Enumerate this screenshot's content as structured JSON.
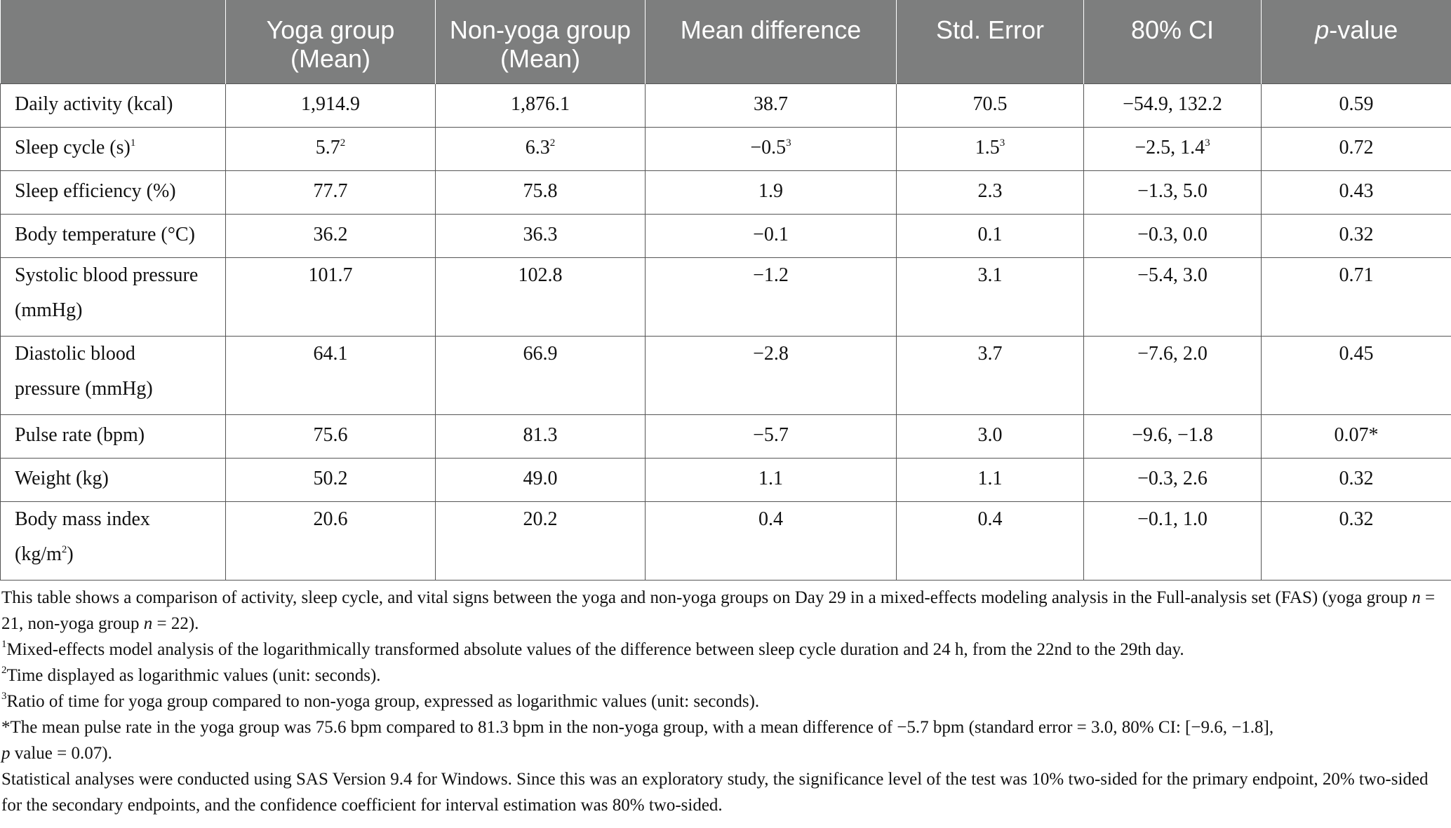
{
  "table": {
    "headers": [
      "",
      "Yoga group (Mean)",
      "Non-yoga group (Mean)",
      "Mean difference",
      "Std. Error",
      "80% CI",
      "p-value"
    ],
    "header_pvalue_italic": "p",
    "header_pvalue_rest": "-value",
    "rows": [
      {
        "label": "Daily activity (kcal)",
        "yoga": "1,914.9",
        "nonyoga": "1,876.1",
        "diff": "38.7",
        "se": "70.5",
        "ci": "−54.9, 132.2",
        "p": "0.59"
      },
      {
        "label": "Sleep cycle (s)",
        "label_sup": "1",
        "yoga": "5.7",
        "yoga_sup": "2",
        "nonyoga": "6.3",
        "nonyoga_sup": "2",
        "diff": "−0.5",
        "diff_sup": "3",
        "se": "1.5",
        "se_sup": "3",
        "ci": "−2.5, 1.4",
        "ci_sup": "3",
        "p": "0.72"
      },
      {
        "label": "Sleep efficiency (%)",
        "yoga": "77.7",
        "nonyoga": "75.8",
        "diff": "1.9",
        "se": "2.3",
        "ci": "−1.3, 5.0",
        "p": "0.43"
      },
      {
        "label": "Body temperature (°C)",
        "yoga": "36.2",
        "nonyoga": "36.3",
        "diff": "−0.1",
        "se": "0.1",
        "ci": "−0.3, 0.0",
        "p": "0.32"
      },
      {
        "label_line1": "Systolic blood pressure",
        "label_line2": "(mmHg)",
        "yoga": "101.7",
        "nonyoga": "102.8",
        "diff": "−1.2",
        "se": "3.1",
        "ci": "−5.4, 3.0",
        "p": "0.71"
      },
      {
        "label_line1": "Diastolic blood",
        "label_line2": "pressure (mmHg)",
        "yoga": "64.1",
        "nonyoga": "66.9",
        "diff": "−2.8",
        "se": "3.7",
        "ci": "−7.6, 2.0",
        "p": "0.45"
      },
      {
        "label": "Pulse rate (bpm)",
        "yoga": "75.6",
        "nonyoga": "81.3",
        "diff": "−5.7",
        "se": "3.0",
        "ci": "−9.6, −1.8",
        "p": "0.07*"
      },
      {
        "label": "Weight (kg)",
        "yoga": "50.2",
        "nonyoga": "49.0",
        "diff": "1.1",
        "se": "1.1",
        "ci": "−0.3, 2.6",
        "p": "0.32"
      },
      {
        "label_line1": "Body mass index",
        "label_line2_pre": "(kg/m",
        "label_line2_sup": "2",
        "label_line2_post": ")",
        "yoga": "20.6",
        "nonyoga": "20.2",
        "diff": "0.4",
        "se": "0.4",
        "ci": "−0.1, 1.0",
        "p": "0.32"
      }
    ]
  },
  "notes": {
    "intro_a": "This table shows a comparison of activity, sleep cycle, and vital signs between the yoga and non-yoga groups on Day 29 in a mixed-effects modeling analysis in the Full-analysis set (FAS) (yoga group ",
    "intro_n": "n",
    "intro_b": " = 21, non-yoga group ",
    "intro_c": " = 22).",
    "fn1_mark": "1",
    "fn1": "Mixed-effects model analysis of the logarithmically transformed absolute values of the difference between sleep cycle duration and 24 h, from the 22nd to the 29th day.",
    "fn2_mark": "2",
    "fn2": "Time displayed as logarithmic values (unit: seconds).",
    "fn3_mark": "3",
    "fn3": "Ratio of time for yoga group compared to non-yoga group, expressed as logarithmic values (unit: seconds).",
    "star_a": "*The mean pulse rate in the yoga group was 75.6 bpm compared to 81.3 bpm in the non-yoga group, with a mean difference of −5.7 bpm (standard error = 3.0, 80% CI: [−9.6, −1.8],",
    "star_p": "p",
    "star_b": " value = 0.07).",
    "stats": "Statistical analyses were conducted using SAS Version 9.4 for Windows. Since this was an exploratory study, the significance level of the test was 10% two-sided for the primary endpoint, 20% two-sided for the secondary endpoints, and the confidence coefficient for interval estimation was 80% two-sided."
  }
}
